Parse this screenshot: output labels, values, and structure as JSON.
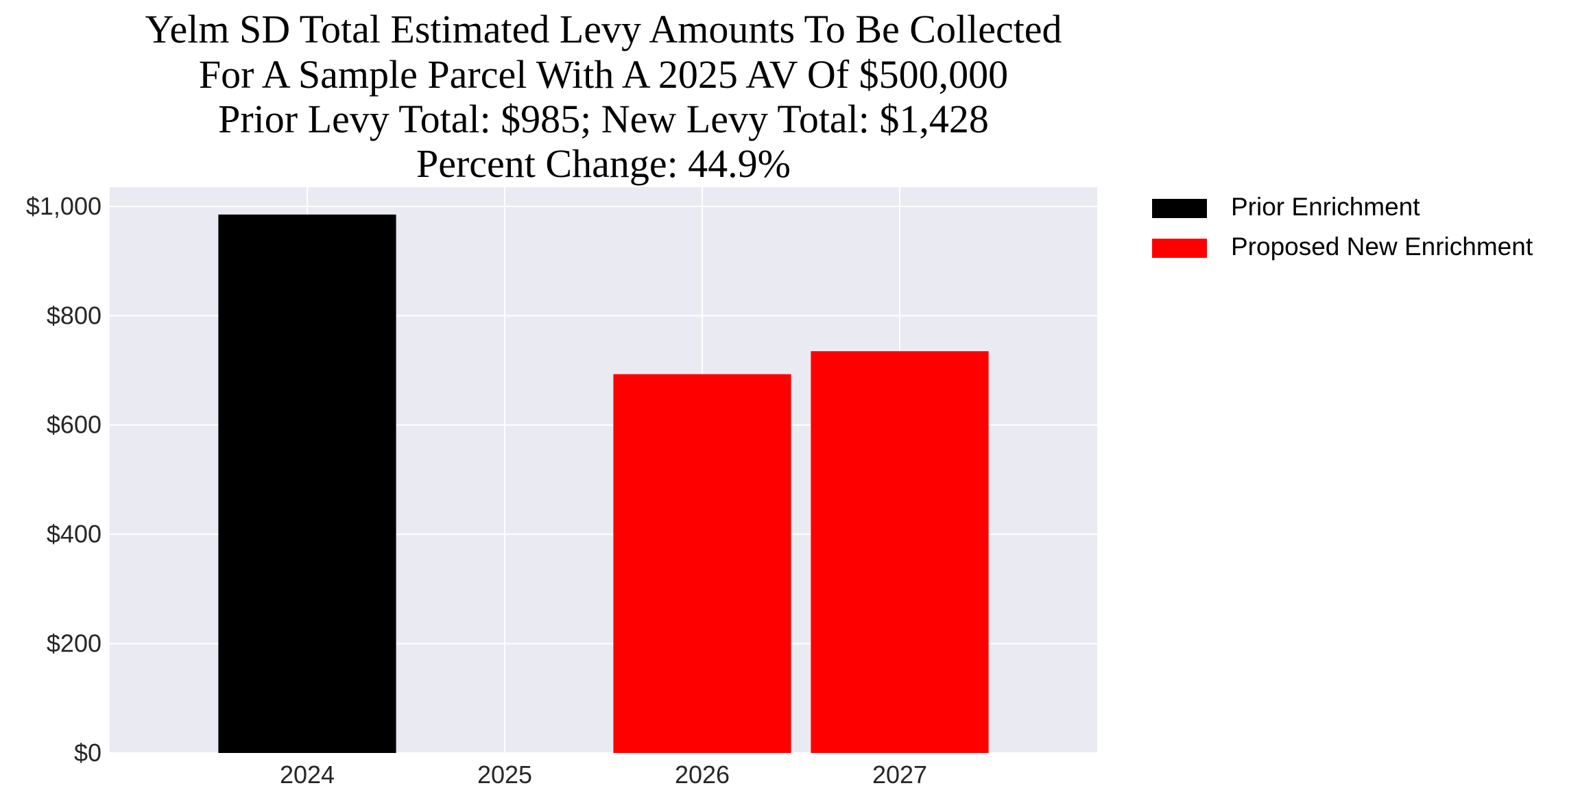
{
  "chart_data": {
    "type": "bar",
    "title_lines": [
      "Yelm SD Total Estimated Levy Amounts To Be Collected",
      "For A Sample Parcel With A 2025 AV Of $500,000",
      "Prior Levy Total:  $985; New Levy Total: $1,428",
      "Percent Change: 44.9%"
    ],
    "categories": [
      "2024",
      "2025",
      "2026",
      "2027"
    ],
    "series": [
      {
        "name": "Prior Enrichment",
        "color": "#000000",
        "values": [
          985,
          0,
          0,
          0
        ]
      },
      {
        "name": "Proposed New Enrichment",
        "color": "#ff0000",
        "values": [
          0,
          0,
          693,
          735
        ]
      }
    ],
    "ylim": [
      0,
      1035
    ],
    "yticks": [
      0,
      200,
      400,
      600,
      800,
      1000
    ],
    "ytick_labels": [
      "$0",
      "$200",
      "$400",
      "$600",
      "$800",
      "$1,000"
    ],
    "xlabel": "",
    "ylabel": "",
    "grid": true,
    "background": "#eaeaf2",
    "legend_position": "outside-top-right"
  }
}
